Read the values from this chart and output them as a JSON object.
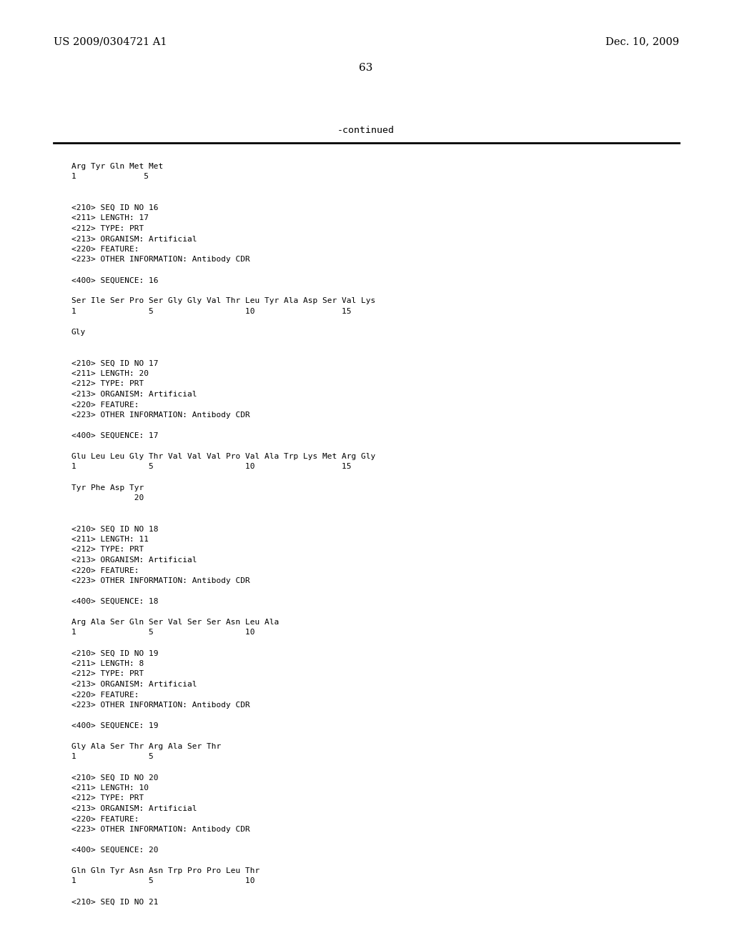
{
  "header_left": "US 2009/0304721 A1",
  "header_right": "Dec. 10, 2009",
  "page_number": "63",
  "continued_text": "-continued",
  "background_color": "#ffffff",
  "text_color": "#000000",
  "figsize": [
    10.24,
    13.2
  ],
  "dpi": 100,
  "content": [
    "Arg Tyr Gln Met Met",
    "1              5",
    "",
    "",
    "<210> SEQ ID NO 16",
    "<211> LENGTH: 17",
    "<212> TYPE: PRT",
    "<213> ORGANISM: Artificial",
    "<220> FEATURE:",
    "<223> OTHER INFORMATION: Antibody CDR",
    "",
    "<400> SEQUENCE: 16",
    "",
    "Ser Ile Ser Pro Ser Gly Gly Val Thr Leu Tyr Ala Asp Ser Val Lys",
    "1               5                   10                  15",
    "",
    "Gly",
    "",
    "",
    "<210> SEQ ID NO 17",
    "<211> LENGTH: 20",
    "<212> TYPE: PRT",
    "<213> ORGANISM: Artificial",
    "<220> FEATURE:",
    "<223> OTHER INFORMATION: Antibody CDR",
    "",
    "<400> SEQUENCE: 17",
    "",
    "Glu Leu Leu Gly Thr Val Val Val Pro Val Ala Trp Lys Met Arg Gly",
    "1               5                   10                  15",
    "",
    "Tyr Phe Asp Tyr",
    "             20",
    "",
    "",
    "<210> SEQ ID NO 18",
    "<211> LENGTH: 11",
    "<212> TYPE: PRT",
    "<213> ORGANISM: Artificial",
    "<220> FEATURE:",
    "<223> OTHER INFORMATION: Antibody CDR",
    "",
    "<400> SEQUENCE: 18",
    "",
    "Arg Ala Ser Gln Ser Val Ser Ser Asn Leu Ala",
    "1               5                   10",
    "",
    "<210> SEQ ID NO 19",
    "<211> LENGTH: 8",
    "<212> TYPE: PRT",
    "<213> ORGANISM: Artificial",
    "<220> FEATURE:",
    "<223> OTHER INFORMATION: Antibody CDR",
    "",
    "<400> SEQUENCE: 19",
    "",
    "Gly Ala Ser Thr Arg Ala Ser Thr",
    "1               5",
    "",
    "<210> SEQ ID NO 20",
    "<211> LENGTH: 10",
    "<212> TYPE: PRT",
    "<213> ORGANISM: Artificial",
    "<220> FEATURE:",
    "<223> OTHER INFORMATION: Antibody CDR",
    "",
    "<400> SEQUENCE: 20",
    "",
    "Gln Gln Tyr Asn Asn Trp Pro Pro Leu Thr",
    "1               5                   10",
    "",
    "<210> SEQ ID NO 21"
  ]
}
